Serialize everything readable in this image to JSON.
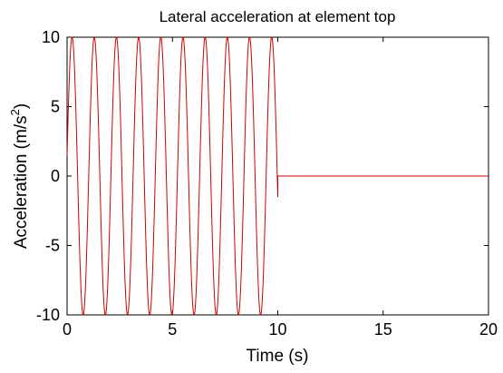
{
  "chart_data": {
    "type": "line",
    "title": "Lateral acceleration at element top",
    "xlabel": "Time (s)",
    "ylabel": "Acceleration (m/s",
    "ylabel_superscript": "2",
    "ylabel_suffix": ")",
    "xlim": [
      0,
      20
    ],
    "ylim": [
      -10,
      10
    ],
    "x_ticks": [
      "0",
      "5",
      "10",
      "15",
      "20"
    ],
    "y_ticks": [
      "10",
      "5",
      "0",
      "-5",
      "-10"
    ],
    "grid": false,
    "legend": "none",
    "series": [
      {
        "color": "#cc0000",
        "segments": [
          {
            "kind": "sine",
            "x_start": 0,
            "x_end": 10,
            "amplitude": 10,
            "frequency_hz": 0.95,
            "value_at_start": 1.5
          },
          {
            "kind": "constant",
            "x_start": 10,
            "x_end": 20,
            "value": 0
          }
        ]
      }
    ]
  }
}
